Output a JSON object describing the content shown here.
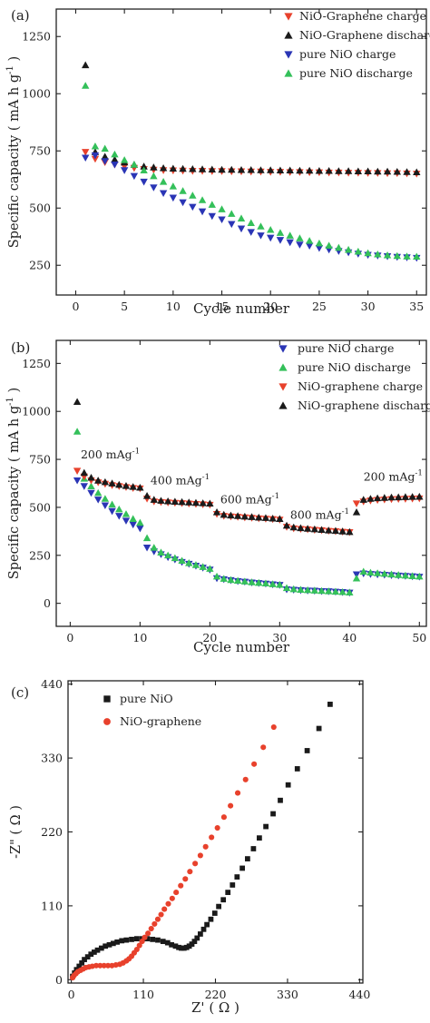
{
  "chart_data": [
    {
      "type": "scatter",
      "panel_label": "(a)",
      "xlabel": "Cycle number",
      "ylabel": "Specific capacity ( mA h g",
      "ylabel_sup": "-1",
      "ylabel_close": ")",
      "xlim": [
        -2,
        36
      ],
      "ylim": [
        120,
        1370
      ],
      "xticks": [
        0,
        5,
        10,
        15,
        20,
        25,
        30,
        35
      ],
      "yticks": [
        250,
        500,
        750,
        1000,
        1250
      ],
      "legend_position": "top-right",
      "series": [
        {
          "name": "NiO-Graphene charge",
          "marker": "triangle-down",
          "color": "#e8412c",
          "x": [
            1,
            2,
            3,
            4,
            5,
            6,
            7,
            8,
            9,
            10,
            11,
            12,
            13,
            14,
            15,
            16,
            17,
            18,
            19,
            20,
            21,
            22,
            23,
            24,
            25,
            26,
            27,
            28,
            29,
            30,
            31,
            32,
            33,
            34,
            35
          ],
          "y": [
            745,
            715,
            700,
            690,
            682,
            675,
            670,
            667,
            665,
            664,
            663,
            662,
            662,
            661,
            661,
            660,
            660,
            659,
            659,
            658,
            658,
            657,
            657,
            656,
            656,
            655,
            655,
            654,
            654,
            653,
            653,
            652,
            652,
            651,
            650
          ]
        },
        {
          "name": "NiO-Graphene discharge",
          "marker": "triangle-up",
          "color": "#1a1a1a",
          "x": [
            1,
            2,
            3,
            4,
            5,
            6,
            7,
            8,
            9,
            10,
            11,
            12,
            13,
            14,
            15,
            16,
            17,
            18,
            19,
            20,
            21,
            22,
            23,
            24,
            25,
            26,
            27,
            28,
            29,
            30,
            31,
            32,
            33,
            34,
            35
          ],
          "y": [
            1125,
            745,
            725,
            712,
            700,
            690,
            682,
            678,
            675,
            673,
            672,
            671,
            670,
            669,
            668,
            668,
            667,
            667,
            666,
            666,
            665,
            665,
            664,
            664,
            663,
            663,
            662,
            662,
            661,
            661,
            660,
            660,
            659,
            658,
            657
          ]
        },
        {
          "name": "pure NiO charge",
          "marker": "triangle-down",
          "color": "#2a35b5",
          "x": [
            1,
            2,
            3,
            4,
            5,
            6,
            7,
            8,
            9,
            10,
            11,
            12,
            13,
            14,
            15,
            16,
            17,
            18,
            19,
            20,
            21,
            22,
            23,
            24,
            25,
            26,
            27,
            28,
            29,
            30,
            31,
            32,
            33,
            34,
            35
          ],
          "y": [
            720,
            730,
            705,
            690,
            665,
            640,
            615,
            590,
            565,
            545,
            525,
            505,
            485,
            465,
            450,
            430,
            410,
            395,
            380,
            370,
            360,
            350,
            340,
            335,
            325,
            318,
            312,
            306,
            300,
            295,
            292,
            289,
            286,
            284,
            282
          ]
        },
        {
          "name": "pure NiO discharge",
          "marker": "triangle-up",
          "color": "#34c05a",
          "x": [
            1,
            2,
            3,
            4,
            5,
            6,
            7,
            8,
            9,
            10,
            11,
            12,
            13,
            14,
            15,
            16,
            17,
            18,
            19,
            20,
            21,
            22,
            23,
            24,
            25,
            26,
            27,
            28,
            29,
            30,
            31,
            32,
            33,
            34,
            35
          ],
          "y": [
            1035,
            770,
            760,
            735,
            710,
            690,
            665,
            640,
            615,
            595,
            575,
            555,
            535,
            515,
            495,
            475,
            455,
            435,
            420,
            405,
            392,
            380,
            368,
            357,
            346,
            336,
            327,
            318,
            310,
            303,
            298,
            294,
            291,
            289,
            288
          ]
        }
      ]
    },
    {
      "type": "scatter",
      "panel_label": "(b)",
      "xlabel": "Cycle number",
      "ylabel": "Specific capacity ( mA h g",
      "ylabel_sup": "-1",
      "ylabel_close": ")",
      "xlim": [
        -2,
        51
      ],
      "ylim": [
        -120,
        1370
      ],
      "xticks": [
        0,
        10,
        20,
        30,
        40,
        50
      ],
      "yticks": [
        0,
        250,
        500,
        750,
        1000,
        1250
      ],
      "legend_position": "top-right",
      "annotations": [
        {
          "text": "200 mAg",
          "sup": "-1",
          "x": 1.5,
          "y": 755
        },
        {
          "text": "400 mAg",
          "sup": "-1",
          "x": 11.5,
          "y": 620
        },
        {
          "text": "600 mAg",
          "sup": "-1",
          "x": 21.5,
          "y": 520
        },
        {
          "text": "800 mAg",
          "sup": "-1",
          "x": 31.5,
          "y": 440
        },
        {
          "text": "200 mAg",
          "sup": "-1",
          "x": 42,
          "y": 640
        }
      ],
      "series": [
        {
          "name": "pure NiO charge",
          "marker": "triangle-down",
          "color": "#2a35b5",
          "x": [
            1,
            2,
            3,
            4,
            5,
            6,
            7,
            8,
            9,
            10,
            11,
            12,
            13,
            14,
            15,
            16,
            17,
            18,
            19,
            20,
            21,
            22,
            23,
            24,
            25,
            26,
            27,
            28,
            29,
            30,
            31,
            32,
            33,
            34,
            35,
            36,
            37,
            38,
            39,
            40,
            41,
            42,
            43,
            44,
            45,
            46,
            47,
            48,
            49,
            50
          ],
          "y": [
            640,
            610,
            575,
            540,
            510,
            480,
            455,
            430,
            410,
            390,
            290,
            270,
            255,
            240,
            228,
            215,
            205,
            195,
            185,
            175,
            130,
            125,
            120,
            115,
            112,
            108,
            105,
            102,
            98,
            95,
            72,
            70,
            68,
            66,
            65,
            63,
            62,
            60,
            58,
            55,
            150,
            155,
            152,
            150,
            148,
            146,
            144,
            142,
            140,
            138
          ]
        },
        {
          "name": "pure NiO discharge",
          "marker": "triangle-up",
          "color": "#34c05a",
          "x": [
            1,
            2,
            3,
            4,
            5,
            6,
            7,
            8,
            9,
            10,
            11,
            12,
            13,
            14,
            15,
            16,
            17,
            18,
            19,
            20,
            21,
            22,
            23,
            24,
            25,
            26,
            27,
            28,
            29,
            30,
            31,
            32,
            33,
            34,
            35,
            36,
            37,
            38,
            39,
            40,
            41,
            42,
            43,
            44,
            45,
            46,
            47,
            48,
            49,
            50
          ],
          "y": [
            895,
            650,
            610,
            575,
            545,
            515,
            490,
            465,
            440,
            420,
            340,
            290,
            265,
            250,
            236,
            222,
            210,
            200,
            190,
            180,
            140,
            128,
            122,
            118,
            114,
            110,
            107,
            104,
            100,
            97,
            80,
            74,
            71,
            69,
            67,
            65,
            63,
            61,
            59,
            57,
            130,
            165,
            160,
            157,
            154,
            151,
            148,
            145,
            142,
            140
          ]
        },
        {
          "name": "NiO-graphene charge",
          "marker": "triangle-down",
          "color": "#e8412c",
          "x": [
            1,
            2,
            3,
            4,
            5,
            6,
            7,
            8,
            9,
            10,
            11,
            12,
            13,
            14,
            15,
            16,
            17,
            18,
            19,
            20,
            21,
            22,
            23,
            24,
            25,
            26,
            27,
            28,
            29,
            30,
            31,
            32,
            33,
            34,
            35,
            36,
            37,
            38,
            39,
            40,
            41,
            42,
            43,
            44,
            45,
            46,
            47,
            48,
            49,
            50
          ],
          "y": [
            690,
            660,
            640,
            630,
            622,
            615,
            610,
            605,
            600,
            598,
            545,
            530,
            527,
            525,
            523,
            521,
            519,
            517,
            515,
            513,
            465,
            455,
            452,
            450,
            447,
            445,
            442,
            440,
            438,
            435,
            398,
            390,
            387,
            385,
            382,
            380,
            377,
            375,
            372,
            370,
            520,
            530,
            535,
            538,
            540,
            542,
            543,
            544,
            545,
            546
          ]
        },
        {
          "name": "NiO-graphene discharge",
          "marker": "triangle-up",
          "color": "#1a1a1a",
          "x": [
            1,
            2,
            3,
            4,
            5,
            6,
            7,
            8,
            9,
            10,
            11,
            12,
            13,
            14,
            15,
            16,
            17,
            18,
            19,
            20,
            21,
            22,
            23,
            24,
            25,
            26,
            27,
            28,
            29,
            30,
            31,
            32,
            33,
            34,
            35,
            36,
            37,
            38,
            39,
            40,
            41,
            42,
            43,
            44,
            45,
            46,
            47,
            48,
            49,
            50
          ],
          "y": [
            1050,
            680,
            655,
            640,
            632,
            625,
            618,
            612,
            607,
            603,
            560,
            540,
            535,
            532,
            530,
            528,
            526,
            524,
            522,
            520,
            475,
            462,
            458,
            455,
            452,
            450,
            447,
            445,
            442,
            440,
            405,
            396,
            392,
            389,
            386,
            383,
            380,
            378,
            375,
            372,
            475,
            540,
            545,
            548,
            550,
            552,
            553,
            554,
            555,
            556
          ]
        }
      ]
    },
    {
      "type": "scatter",
      "panel_label": "(c)",
      "xlabel": "Z' ( Ω )",
      "ylabel": "-Z\" ( Ω )",
      "xlim": [
        -5,
        445
      ],
      "ylim": [
        -5,
        445
      ],
      "xticks": [
        0,
        110,
        220,
        330,
        440
      ],
      "yticks": [
        0,
        110,
        220,
        330,
        440
      ],
      "legend_position": "top-left",
      "series": [
        {
          "name": "pure NiO",
          "marker": "square",
          "color": "#1a1a1a",
          "x": [
            2,
            5,
            8,
            12,
            16,
            20,
            25,
            30,
            35,
            40,
            46,
            52,
            58,
            64,
            70,
            77,
            84,
            92,
            100,
            108,
            116,
            124,
            132,
            140,
            147,
            153,
            159,
            164,
            168,
            172,
            176,
            180,
            184,
            188,
            192,
            197,
            202,
            207,
            213,
            219,
            225,
            232,
            239,
            246,
            253,
            261,
            269,
            278,
            287,
            297,
            308,
            319,
            331,
            345,
            360,
            378,
            395
          ],
          "y": [
            5,
            10,
            15,
            20,
            25,
            30,
            34,
            38,
            41,
            44,
            47,
            50,
            52,
            54,
            56,
            58,
            59,
            60,
            61,
            61,
            61,
            60,
            59,
            57,
            55,
            52,
            50,
            48,
            47,
            47,
            48,
            50,
            53,
            57,
            62,
            68,
            75,
            82,
            90,
            99,
            109,
            119,
            130,
            141,
            153,
            166,
            180,
            195,
            211,
            228,
            247,
            267,
            290,
            314,
            341,
            374,
            410
          ]
        },
        {
          "name": "NiO-graphene",
          "marker": "circle",
          "color": "#e8412c",
          "x": [
            2,
            4,
            7,
            10,
            14,
            18,
            22,
            27,
            32,
            38,
            44,
            50,
            56,
            62,
            68,
            74,
            79,
            84,
            88,
            92,
            96,
            100,
            104,
            108,
            112,
            117,
            122,
            127,
            132,
            137,
            142,
            148,
            154,
            160,
            167,
            174,
            181,
            189,
            197,
            205,
            214,
            223,
            233,
            243,
            254,
            266,
            279,
            293,
            309
          ],
          "y": [
            3,
            6,
            9,
            12,
            14,
            16,
            18,
            19,
            20,
            21,
            21,
            21,
            21,
            21,
            22,
            23,
            25,
            28,
            31,
            35,
            40,
            45,
            51,
            57,
            63,
            69,
            76,
            83,
            90,
            97,
            105,
            113,
            121,
            130,
            140,
            150,
            161,
            173,
            185,
            198,
            212,
            226,
            242,
            259,
            278,
            298,
            321,
            346,
            376
          ]
        }
      ]
    }
  ]
}
